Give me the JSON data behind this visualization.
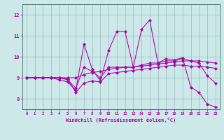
{
  "xlabel": "Windchill (Refroidissement éolien,°C)",
  "xlim": [
    -0.5,
    23.5
  ],
  "ylim": [
    7.5,
    12.5
  ],
  "yticks": [
    8,
    9,
    10,
    11,
    12
  ],
  "xticks": [
    0,
    1,
    2,
    3,
    4,
    5,
    6,
    7,
    8,
    9,
    10,
    11,
    12,
    13,
    14,
    15,
    16,
    17,
    18,
    19,
    20,
    21,
    22,
    23
  ],
  "bg_color": "#cce8e8",
  "line_color": "#aa00aa",
  "grid_color": "#99bbbb",
  "line1": [
    9.0,
    9.0,
    9.0,
    9.0,
    8.9,
    8.8,
    8.4,
    10.6,
    9.4,
    8.85,
    10.3,
    11.2,
    11.2,
    9.5,
    11.3,
    11.75,
    9.7,
    9.9,
    9.85,
    9.95,
    8.55,
    8.3,
    7.75,
    7.6
  ],
  "line2": [
    9.0,
    9.0,
    9.0,
    9.0,
    9.0,
    8.9,
    8.5,
    9.5,
    9.3,
    9.0,
    9.5,
    9.5,
    9.5,
    9.5,
    9.6,
    9.7,
    9.7,
    9.8,
    9.8,
    9.9,
    9.8,
    9.7,
    9.1,
    8.75
  ],
  "line3": [
    9.0,
    9.0,
    9.0,
    9.0,
    9.0,
    9.0,
    9.0,
    9.15,
    9.25,
    9.3,
    9.4,
    9.45,
    9.5,
    9.5,
    9.55,
    9.6,
    9.65,
    9.7,
    9.75,
    9.8,
    9.8,
    9.8,
    9.75,
    9.7
  ],
  "line4": [
    9.0,
    9.0,
    9.0,
    9.0,
    9.0,
    8.95,
    8.3,
    8.75,
    8.85,
    8.8,
    9.2,
    9.25,
    9.3,
    9.35,
    9.4,
    9.45,
    9.5,
    9.55,
    9.6,
    9.6,
    9.55,
    9.55,
    9.5,
    9.45
  ]
}
